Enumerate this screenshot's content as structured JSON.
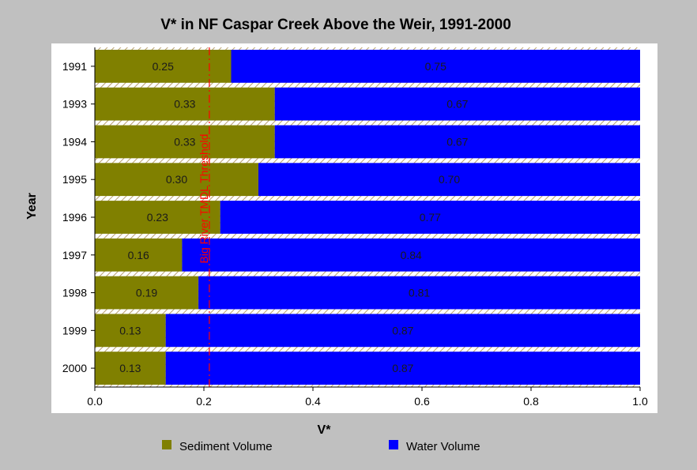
{
  "chart_data": {
    "type": "bar",
    "orientation": "horizontal",
    "stacked": true,
    "title": "V* in NF Caspar Creek Above the Weir, 1991-2000",
    "xlabel": "V*",
    "ylabel": "Year",
    "xlim": [
      0,
      1.0
    ],
    "x_ticks": [
      "0.0",
      "0.2",
      "0.4",
      "0.6",
      "0.8",
      "1.0"
    ],
    "x_tick_values": [
      0,
      0.2,
      0.4,
      0.6,
      0.8,
      1.0
    ],
    "categories": [
      "1991",
      "1993",
      "1994",
      "1995",
      "1996",
      "1997",
      "1998",
      "1999",
      "2000"
    ],
    "series": [
      {
        "name": "Sediment Volume",
        "color": "#808000",
        "values": [
          0.25,
          0.33,
          0.33,
          0.3,
          0.23,
          0.16,
          0.19,
          0.13,
          0.13
        ],
        "labels": [
          "0.25",
          "0.33",
          "0.33",
          "0.30",
          "0.23",
          "0.16",
          "0.19",
          "0.13",
          "0.13"
        ]
      },
      {
        "name": "Water Volume",
        "color": "#0000ff",
        "values": [
          0.75,
          0.67,
          0.67,
          0.7,
          0.77,
          0.84,
          0.81,
          0.87,
          0.87
        ],
        "labels": [
          "0.75",
          "0.67",
          "0.67",
          "0.70",
          "0.77",
          "0.84",
          "0.81",
          "0.87",
          "0.87"
        ]
      }
    ],
    "threshold": {
      "value": 0.21,
      "label": "Big River TMDL Threshold",
      "color": "#ff0000"
    },
    "legend_position": "bottom",
    "grid": false,
    "colors": {
      "background": "#c0c0c0",
      "plot_background": "#ffffff"
    }
  }
}
